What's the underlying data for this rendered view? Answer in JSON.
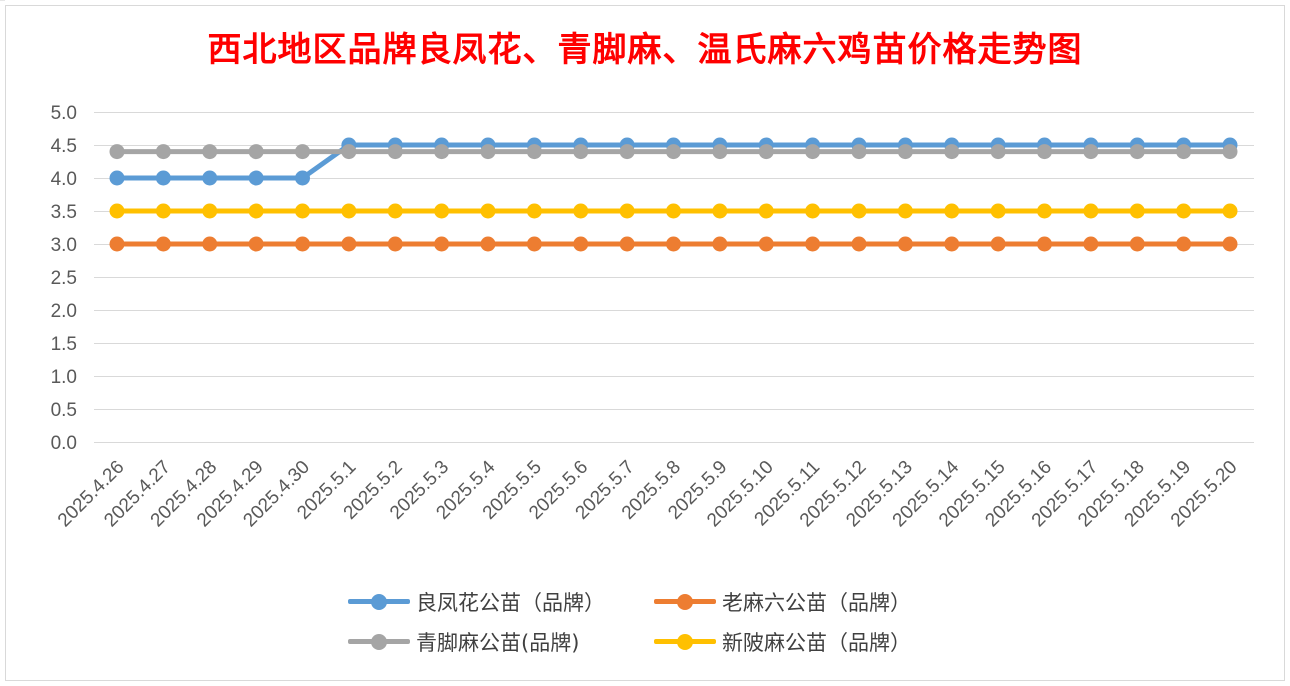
{
  "chart_data": {
    "type": "line",
    "title": "西北地区品牌良凤花、青脚麻、温氏麻六鸡苗价格走势图",
    "xlabel": "",
    "ylabel": "",
    "ylim": [
      0,
      5
    ],
    "yticks": [
      "0.0",
      "0.5",
      "1.0",
      "1.5",
      "2.0",
      "2.5",
      "3.0",
      "3.5",
      "4.0",
      "4.5",
      "5.0"
    ],
    "grid": true,
    "legend_position": "bottom",
    "categories": [
      "2025.4.26",
      "2025.4.27",
      "2025.4.28",
      "2025.4.29",
      "2025.4.30",
      "2025.5.1",
      "2025.5.2",
      "2025.5.3",
      "2025.5.4",
      "2025.5.5",
      "2025.5.6",
      "2025.5.7",
      "2025.5.8",
      "2025.5.9",
      "2025.5.10",
      "2025.5.11",
      "2025.5.12",
      "2025.5.13",
      "2025.5.14",
      "2025.5.15",
      "2025.5.16",
      "2025.5.17",
      "2025.5.18",
      "2025.5.19",
      "2025.5.20"
    ],
    "series": [
      {
        "name": "良凤花公苗（品牌）",
        "color": "#5b9bd5",
        "values": [
          4.0,
          4.0,
          4.0,
          4.0,
          4.0,
          4.5,
          4.5,
          4.5,
          4.5,
          4.5,
          4.5,
          4.5,
          4.5,
          4.5,
          4.5,
          4.5,
          4.5,
          4.5,
          4.5,
          4.5,
          4.5,
          4.5,
          4.5,
          4.5,
          4.5
        ]
      },
      {
        "name": "老麻六公苗（品牌）",
        "color": "#ed7d31",
        "values": [
          3.0,
          3.0,
          3.0,
          3.0,
          3.0,
          3.0,
          3.0,
          3.0,
          3.0,
          3.0,
          3.0,
          3.0,
          3.0,
          3.0,
          3.0,
          3.0,
          3.0,
          3.0,
          3.0,
          3.0,
          3.0,
          3.0,
          3.0,
          3.0,
          3.0
        ]
      },
      {
        "name": "青脚麻公苗(品牌)",
        "color": "#a5a5a5",
        "values": [
          4.4,
          4.4,
          4.4,
          4.4,
          4.4,
          4.4,
          4.4,
          4.4,
          4.4,
          4.4,
          4.4,
          4.4,
          4.4,
          4.4,
          4.4,
          4.4,
          4.4,
          4.4,
          4.4,
          4.4,
          4.4,
          4.4,
          4.4,
          4.4,
          4.4
        ]
      },
      {
        "name": "新陂麻公苗（品牌）",
        "color": "#ffc000",
        "values": [
          3.5,
          3.5,
          3.5,
          3.5,
          3.5,
          3.5,
          3.5,
          3.5,
          3.5,
          3.5,
          3.5,
          3.5,
          3.5,
          3.5,
          3.5,
          3.5,
          3.5,
          3.5,
          3.5,
          3.5,
          3.5,
          3.5,
          3.5,
          3.5,
          3.5
        ]
      }
    ]
  },
  "colors": {
    "title": "#ff0000",
    "gridline": "#d9d9d9",
    "axis_text": "#595959",
    "legend_text": "#404040"
  }
}
